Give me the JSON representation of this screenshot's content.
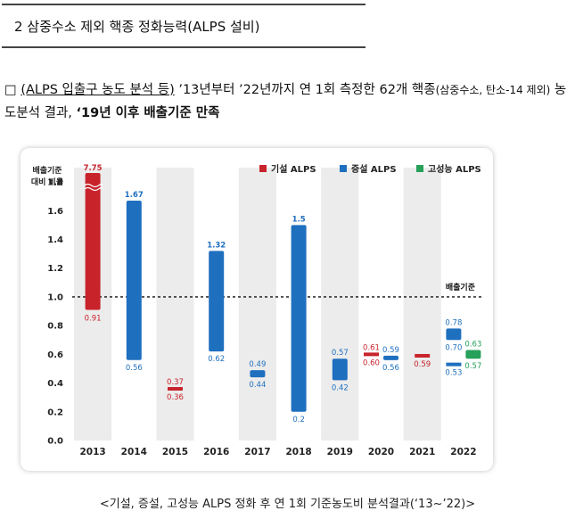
{
  "section_title": "2  삼중수소 제외 핵종 정화능력(ALPS 설비)",
  "paragraph": {
    "bullet": "□",
    "link": "(ALPS 입출구 농도 분석 등)",
    "text1": " ’13년부터 ’22년까지 연 1회 측정한 62개 핵종",
    "small": "(삼중수소, 탄소-14 제외)",
    "text2": " 농도분석 결과, ",
    "bold": "‘19년 이후 배출기준 만족"
  },
  "caption": "<기설, 증설, 고성능 ALPS 정화 후 연 1회 기준농도비 분석결과(‘13~’22)>",
  "chart_data": {
    "type": "bar",
    "title": "",
    "ylabel": "배출기준 대비 비율",
    "ylim": [
      0,
      1.9
    ],
    "yticks": [
      "0.0",
      "0.2",
      "0.4",
      "0.6",
      "0.8",
      "1.0",
      "1.2",
      "1.4",
      "1.6",
      "1.8"
    ],
    "categories": [
      "2013",
      "2014",
      "2015",
      "2016",
      "2017",
      "2018",
      "2019",
      "2020",
      "2021",
      "2022"
    ],
    "reference_line": {
      "value": 1.0,
      "label": "배출기준"
    },
    "legend": [
      {
        "name": "기설 ALPS",
        "color": "#c8232b"
      },
      {
        "name": "증설 ALPS",
        "color": "#1f6fbf"
      },
      {
        "name": "고성능 ALPS",
        "color": "#27a05a"
      }
    ],
    "series": [
      {
        "name": "기설 ALPS",
        "color": "#c8232b",
        "ranges": [
          {
            "category": "2013",
            "low": 0.91,
            "high": 7.75,
            "low_label": "0.91",
            "high_label": "7.75",
            "broken": true
          },
          {
            "category": "2015",
            "low": 0.36,
            "high": 0.37,
            "low_label": "0.36",
            "high_label": "0.37"
          },
          {
            "category": "2020",
            "low": 0.6,
            "high": 0.61,
            "low_label": "0.60",
            "high_label": "0.61"
          },
          {
            "category": "2021",
            "low": 0.59,
            "high": 0.59,
            "low_label": "0.59",
            "high_label": ""
          }
        ]
      },
      {
        "name": "증설 ALPS",
        "color": "#1f6fbf",
        "ranges": [
          {
            "category": "2014",
            "low": 0.56,
            "high": 1.67,
            "low_label": "0.56",
            "high_label": "1.67"
          },
          {
            "category": "2016",
            "low": 0.62,
            "high": 1.32,
            "low_label": "0.62",
            "high_label": "1.32"
          },
          {
            "category": "2017",
            "low": 0.44,
            "high": 0.49,
            "low_label": "0.44",
            "high_label": "0.49"
          },
          {
            "category": "2018",
            "low": 0.2,
            "high": 1.5,
            "low_label": "0.2",
            "high_label": "1.5"
          },
          {
            "category": "2019",
            "low": 0.42,
            "high": 0.57,
            "low_label": "0.42",
            "high_label": "0.57"
          },
          {
            "category": "2020",
            "low": 0.56,
            "high": 0.59,
            "low_label": "0.56",
            "high_label": "0.59"
          },
          {
            "category": "2022",
            "low": 0.7,
            "high": 0.78,
            "low_label": "0.70",
            "high_label": "0.78"
          },
          {
            "category": "2022",
            "low": 0.53,
            "high": 0.53,
            "low_label": "0.53",
            "high_label": ""
          }
        ]
      },
      {
        "name": "고성능 ALPS",
        "color": "#27a05a",
        "ranges": [
          {
            "category": "2022",
            "low": 0.57,
            "high": 0.63,
            "low_label": "0.57",
            "high_label": "0.63"
          }
        ]
      }
    ]
  }
}
